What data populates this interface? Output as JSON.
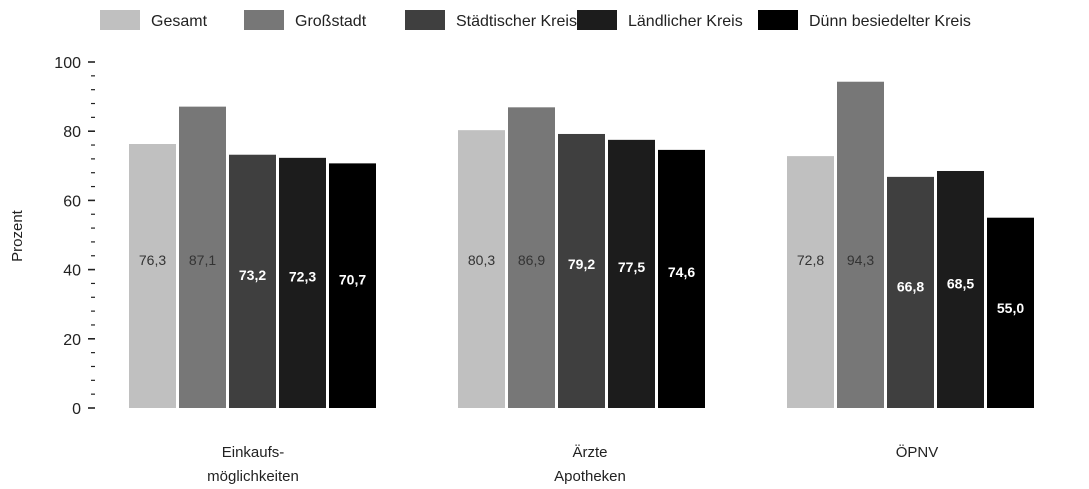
{
  "chart_data": {
    "type": "bar",
    "ylabel": "Prozent",
    "ylim": [
      0,
      100
    ],
    "yticks": [
      0,
      20,
      40,
      60,
      80,
      100
    ],
    "legend_position": "top",
    "categories": [
      [
        "Einkaufs-",
        "möglichkeiten"
      ],
      [
        "Ärzte",
        "Apotheken"
      ],
      [
        "ÖPNV"
      ]
    ],
    "series": [
      {
        "name": "Gesamt",
        "color": "#c0c0c0",
        "label_color": "#333333",
        "values": [
          76.3,
          80.3,
          72.8
        ],
        "labels": [
          "76,3",
          "80,3",
          "72,8"
        ]
      },
      {
        "name": "Großstadt",
        "color": "#777777",
        "label_color": "#333333",
        "values": [
          87.1,
          86.9,
          94.3
        ],
        "labels": [
          "87,1",
          "86,9",
          "94,3"
        ]
      },
      {
        "name": "Städtischer Kreis",
        "color": "#3f3f3f",
        "label_color": "#ffffff",
        "values": [
          73.2,
          79.2,
          66.8
        ],
        "labels": [
          "73,2",
          "79,2",
          "66,8"
        ]
      },
      {
        "name": "Ländlicher Kreis",
        "color": "#1c1c1c",
        "label_color": "#ffffff",
        "values": [
          72.3,
          77.5,
          68.5
        ],
        "labels": [
          "72,3",
          "77,5",
          "68,5"
        ]
      },
      {
        "name": "Dünn besiedelter Kreis",
        "color": "#000000",
        "label_color": "#ffffff",
        "values": [
          70.7,
          74.6,
          55.0
        ],
        "labels": [
          "70,7",
          "74,6",
          "55,0"
        ]
      }
    ]
  }
}
